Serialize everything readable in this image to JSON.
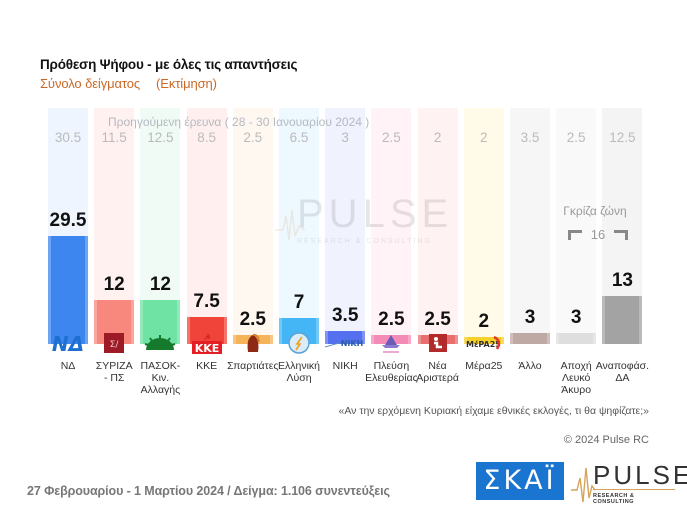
{
  "header": {
    "title": "Πρόθεση Ψήφου - με όλες τις απαντήσεις",
    "subtitle": "Σύνολο δείγματος",
    "subtitle_note": "(Εκτίμηση)"
  },
  "previous_survey": {
    "caption": "Προηγούμενη έρευνα ( 28 - 30 Ιανουαρίου 2024 )"
  },
  "grey_zone": {
    "label": "Γκρίζα ζώνη",
    "value": "16"
  },
  "parties": [
    {
      "label": "ΝΔ",
      "value": "29.5",
      "prev": "30.5",
      "color": "#3d86f0",
      "bg": "#eef5ff",
      "logo": "nd-logo",
      "logo_text": "ΝΔ"
    },
    {
      "label": "ΣΥΡΙΖΑ\n- ΠΣ",
      "value": "12",
      "prev": "11.5",
      "color": "#f8877e",
      "bg": "#fff1f0",
      "logo": "syriza-logo",
      "logo_text": "ΣΥ"
    },
    {
      "label": "ΠΑΣΟΚ-Κιν.\nΑλλαγής",
      "value": "12",
      "prev": "12.5",
      "color": "#6ee3a4",
      "bg": "#effbf4",
      "logo": "pasok-logo",
      "logo_text": ""
    },
    {
      "label": "ΚΚΕ",
      "value": "7.5",
      "prev": "8.5",
      "color": "#f0443a",
      "bg": "#fff0ef",
      "logo": "kke-logo",
      "logo_text": "ΚΚΕ"
    },
    {
      "label": "Σπαρτιάτες",
      "value": "2.5",
      "prev": "2.5",
      "color": "#f5b35a",
      "bg": "#fff8f0",
      "logo": "spartiates-logo",
      "logo_text": ""
    },
    {
      "label": "Ελληνική\nΛύση",
      "value": "7",
      "prev": "6.5",
      "color": "#44b6f5",
      "bg": "#eef8ff",
      "logo": "elliniki-lysi-logo",
      "logo_text": ""
    },
    {
      "label": "ΝΙΚΗ",
      "value": "3.5",
      "prev": "3",
      "color": "#5570ee",
      "bg": "#f0f2fe",
      "logo": "niki-logo",
      "logo_text": "NIKH"
    },
    {
      "label": "Πλεύση\nΕλευθερίας",
      "value": "2.5",
      "prev": "2.5",
      "color": "#f48bb6",
      "bg": "#fff3f8",
      "logo": "plefsi-logo",
      "logo_text": ""
    },
    {
      "label": "Νέα\nΑριστερά",
      "value": "2.5",
      "prev": "2",
      "color": "#e86f6f",
      "bg": "#fff2f2",
      "logo": "nea-aristera-logo",
      "logo_text": ""
    },
    {
      "label": "Μέρα25",
      "value": "2",
      "prev": "2",
      "color": "#f7d02a",
      "bg": "#fffbe8",
      "logo": "mera25-logo",
      "logo_text": "MέPA25"
    },
    {
      "label": "Άλλο",
      "value": "3",
      "prev": "3.5",
      "color": "#bfa9a5",
      "bg": "#f7f6f6",
      "logo": "",
      "logo_text": ""
    },
    {
      "label": "Αποχή\nΛευκό\nΆκυρο",
      "value": "3",
      "prev": "2.5",
      "color": "#dedede",
      "bg": "#f9f9f9",
      "logo": "",
      "logo_text": ""
    },
    {
      "label": "Αναποφάσ.\nΔΑ",
      "value": "13",
      "prev": "12.5",
      "color": "#a3a3a3",
      "bg": "#f4f4f4",
      "logo": "",
      "logo_text": ""
    }
  ],
  "question": "«Αν την ερχόμενη Κυριακή είχαμε εθνικές εκλογές, τι θα ψηφίζατε;»",
  "copyright": "© 2024 Pulse RC",
  "footer": "27 Φεβρουαρίου - 1 Μαρτίου 2024  /  Δείγμα:  1.106 συνεντεύξεις",
  "logos": {
    "skai": "ΣΚΑΪ",
    "pulse": "PULSE",
    "pulse_sub": "RESEARCH & CONSULTING",
    "watermark": "PULSE",
    "watermark_sub": "RESEARCH & CONSULTING"
  },
  "chart_data": {
    "type": "bar",
    "title": "Πρόθεση Ψήφου - με όλες τις απαντήσεις",
    "subtitle": "Σύνολο δείγματος (Εκτίμηση)",
    "categories": [
      "ΝΔ",
      "ΣΥΡΙΖΑ - ΠΣ",
      "ΠΑΣΟΚ-Κιν. Αλλαγής",
      "ΚΚΕ",
      "Σπαρτιάτες",
      "Ελληνική Λύση",
      "ΝΙΚΗ",
      "Πλεύση Ελευθερίας",
      "Νέα Αριστερά",
      "Μέρα25",
      "Άλλο",
      "Αποχή Λευκό Άκυρο",
      "Αναποφάσ. ΔΑ"
    ],
    "series": [
      {
        "name": "27 Φεβρουαρίου - 1 Μαρτίου 2024",
        "values": [
          29.5,
          12,
          12,
          7.5,
          2.5,
          7,
          3.5,
          2.5,
          2.5,
          2,
          3,
          3,
          13
        ]
      },
      {
        "name": "Προηγούμενη έρευνα (28 - 30 Ιανουαρίου 2024)",
        "values": [
          30.5,
          11.5,
          12.5,
          8.5,
          2.5,
          6.5,
          3,
          2.5,
          2,
          2,
          3.5,
          2.5,
          12.5
        ]
      }
    ],
    "annotations": [
      "Γκρίζα ζώνη 16 (Αποχή/Λευκό/Άκυρο + Αναποφάσ./ΔΑ)"
    ],
    "xlabel": "",
    "ylabel": "%",
    "grid": false,
    "legend": "none",
    "sample": "1.106 συνεντεύξεις"
  }
}
